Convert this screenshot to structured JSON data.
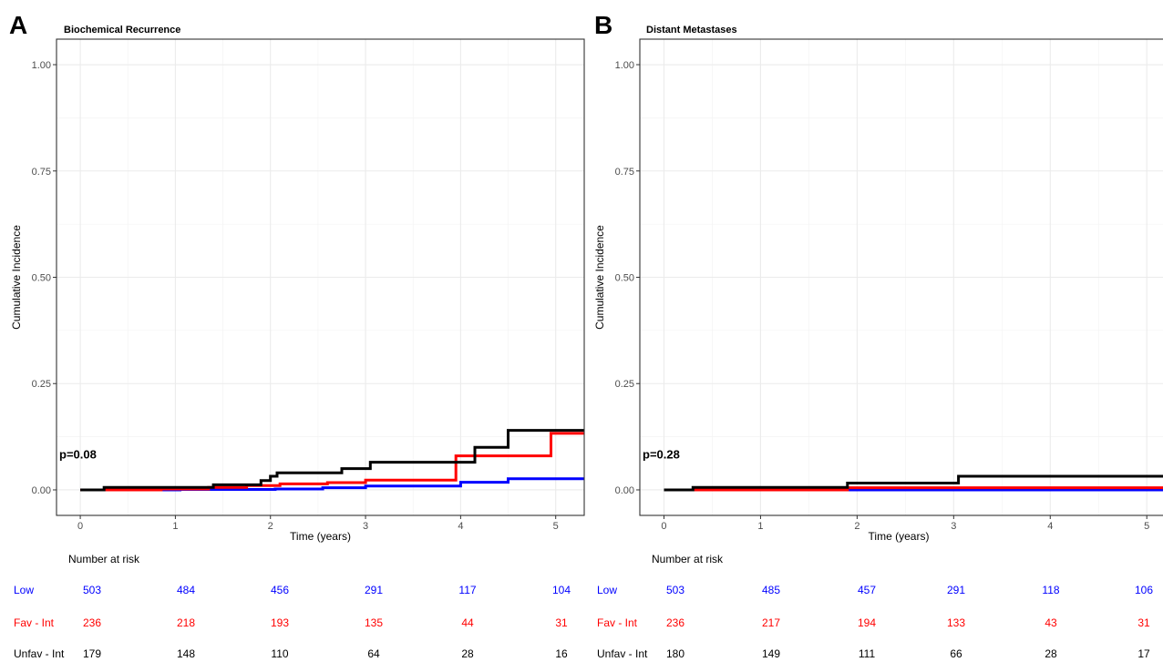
{
  "colors": {
    "Low": "#0000ff",
    "Fav - Int": "#ff0000",
    "Unfav - Int": "#000000"
  },
  "chart_data": [
    {
      "panel_letter": "A",
      "type": "line",
      "step": true,
      "title": "Biochemical Recurrence",
      "xlabel": "Time (years)",
      "ylabel": "Cumulative Incidence",
      "xlim": [
        -0.25,
        5.3
      ],
      "ylim": [
        -0.06,
        1.06
      ],
      "xticks": [
        0,
        1,
        2,
        3,
        4,
        5
      ],
      "yticks": [
        "0.00",
        "0.25",
        "0.50",
        "0.75",
        "1.00"
      ],
      "grid": true,
      "pvalue": "p=0.08",
      "series": [
        {
          "name": "Low",
          "color": "#0000ff",
          "x": [
            0,
            0.9,
            1.05,
            2.05,
            2.55,
            3.0,
            4.0,
            4.5,
            5.3
          ],
          "y": [
            0,
            0,
            0.001,
            0.002,
            0.005,
            0.009,
            0.018,
            0.026,
            0.026
          ]
        },
        {
          "name": "Fav - Int",
          "color": "#ff0000",
          "x": [
            0,
            0.85,
            1.35,
            1.75,
            2.1,
            2.6,
            3.0,
            3.95,
            4.95,
            5.3
          ],
          "y": [
            0,
            0.002,
            0.006,
            0.01,
            0.014,
            0.017,
            0.023,
            0.08,
            0.133,
            0.133
          ]
        },
        {
          "name": "Unfav - Int",
          "color": "#000000",
          "x": [
            0,
            0.25,
            1.4,
            1.9,
            2.0,
            2.07,
            2.75,
            3.05,
            4.15,
            4.5,
            5.3
          ],
          "y": [
            0,
            0.006,
            0.012,
            0.022,
            0.032,
            0.04,
            0.05,
            0.065,
            0.1,
            0.14,
            0.14
          ]
        }
      ],
      "risk_table": {
        "title": "Number at risk",
        "rows": [
          {
            "label": "Low",
            "values": [
              "503",
              "484",
              "456",
              "291",
              "117",
              "104"
            ]
          },
          {
            "label": "Fav - Int",
            "values": [
              "236",
              "218",
              "193",
              "135",
              "44",
              "31"
            ]
          },
          {
            "label": "Unfav - Int",
            "values": [
              "179",
              "148",
              "110",
              "64",
              "28",
              "16"
            ]
          }
        ]
      }
    },
    {
      "panel_letter": "B",
      "type": "line",
      "step": true,
      "title": "Distant Metastases",
      "xlabel": "Time (years)",
      "ylabel": "Cumulative Incidence",
      "xlim": [
        -0.25,
        5.3
      ],
      "ylim": [
        -0.06,
        1.06
      ],
      "xticks": [
        0,
        1,
        2,
        3,
        4,
        5
      ],
      "yticks": [
        "0.00",
        "0.25",
        "0.50",
        "0.75",
        "1.00"
      ],
      "grid": true,
      "pvalue": "p=0.28",
      "series": [
        {
          "name": "Low",
          "color": "#0000ff",
          "x": [
            0,
            5.3
          ],
          "y": [
            0,
            0
          ]
        },
        {
          "name": "Fav - Int",
          "color": "#ff0000",
          "x": [
            0,
            1.9,
            5.3
          ],
          "y": [
            0,
            0.005,
            0.005
          ]
        },
        {
          "name": "Unfav - Int",
          "color": "#000000",
          "x": [
            0,
            0.3,
            1.9,
            3.05,
            5.3
          ],
          "y": [
            0,
            0.006,
            0.016,
            0.032,
            0.032
          ]
        }
      ],
      "risk_table": {
        "title": "Number at risk",
        "rows": [
          {
            "label": "Low",
            "values": [
              "503",
              "485",
              "457",
              "291",
              "118",
              "106"
            ]
          },
          {
            "label": "Fav - Int",
            "values": [
              "236",
              "217",
              "194",
              "133",
              "43",
              "31"
            ]
          },
          {
            "label": "Unfav - Int",
            "values": [
              "180",
              "149",
              "111",
              "66",
              "28",
              "17"
            ]
          }
        ]
      }
    }
  ]
}
